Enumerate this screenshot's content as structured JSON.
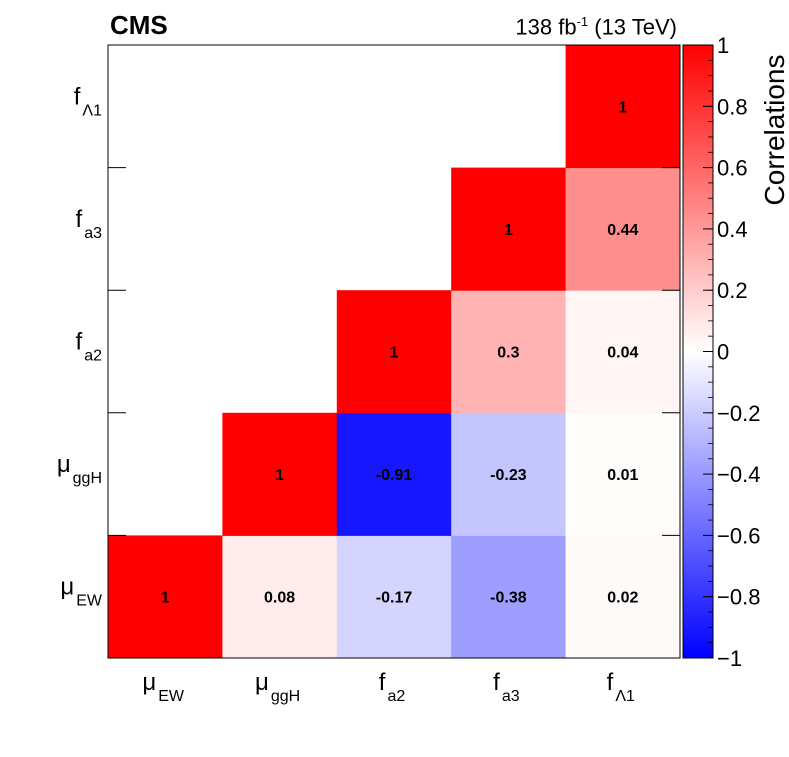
{
  "header": {
    "experiment": "CMS",
    "lumi_value": "138 fb",
    "lumi_exponent": "-1",
    "energy": "(13 TeV)"
  },
  "colors": {
    "positive": "#ff0000",
    "zero": "#ffffff",
    "negative": "#0000ff"
  },
  "chart_data": {
    "type": "heatmap",
    "x_categories": [
      {
        "base": "μ",
        "sub": "EW"
      },
      {
        "base": "μ",
        "sub": "ggH"
      },
      {
        "base": "f",
        "sub": "a2"
      },
      {
        "base": "f",
        "sub": "a3"
      },
      {
        "base": "f",
        "sub": "Λ1"
      }
    ],
    "y_categories": [
      {
        "base": "μ",
        "sub": "EW"
      },
      {
        "base": "μ",
        "sub": "ggH"
      },
      {
        "base": "f",
        "sub": "a2"
      },
      {
        "base": "f",
        "sub": "a3"
      },
      {
        "base": "f",
        "sub": "Λ1"
      }
    ],
    "cells": [
      {
        "x": 0,
        "y": 0,
        "value": 1,
        "label": "1"
      },
      {
        "x": 1,
        "y": 0,
        "value": 0.08,
        "label": "0.08"
      },
      {
        "x": 2,
        "y": 0,
        "value": -0.17,
        "label": "-0.17"
      },
      {
        "x": 3,
        "y": 0,
        "value": -0.38,
        "label": "-0.38"
      },
      {
        "x": 4,
        "y": 0,
        "value": 0.02,
        "label": "0.02"
      },
      {
        "x": 1,
        "y": 1,
        "value": 1,
        "label": "1"
      },
      {
        "x": 2,
        "y": 1,
        "value": -0.91,
        "label": "-0.91"
      },
      {
        "x": 3,
        "y": 1,
        "value": -0.23,
        "label": "-0.23"
      },
      {
        "x": 4,
        "y": 1,
        "value": 0.01,
        "label": "0.01"
      },
      {
        "x": 2,
        "y": 2,
        "value": 1,
        "label": "1"
      },
      {
        "x": 3,
        "y": 2,
        "value": 0.3,
        "label": "0.3"
      },
      {
        "x": 4,
        "y": 2,
        "value": 0.04,
        "label": "0.04"
      },
      {
        "x": 3,
        "y": 3,
        "value": 1,
        "label": "1"
      },
      {
        "x": 4,
        "y": 3,
        "value": 0.44,
        "label": "0.44"
      },
      {
        "x": 4,
        "y": 4,
        "value": 1,
        "label": "1"
      }
    ],
    "colorbar": {
      "title": "Correlations",
      "range": [
        -1,
        1
      ],
      "ticks": [
        {
          "value": 1,
          "label": "1"
        },
        {
          "value": 0.8,
          "label": "0.8"
        },
        {
          "value": 0.6,
          "label": "0.6"
        },
        {
          "value": 0.4,
          "label": "0.4"
        },
        {
          "value": 0.2,
          "label": "0.2"
        },
        {
          "value": 0,
          "label": "0"
        },
        {
          "value": -0.2,
          "label": "−0.2"
        },
        {
          "value": -0.4,
          "label": "−0.4"
        },
        {
          "value": -0.6,
          "label": "−0.6"
        },
        {
          "value": -0.8,
          "label": "−0.8"
        },
        {
          "value": -1,
          "label": "−1"
        }
      ]
    }
  }
}
